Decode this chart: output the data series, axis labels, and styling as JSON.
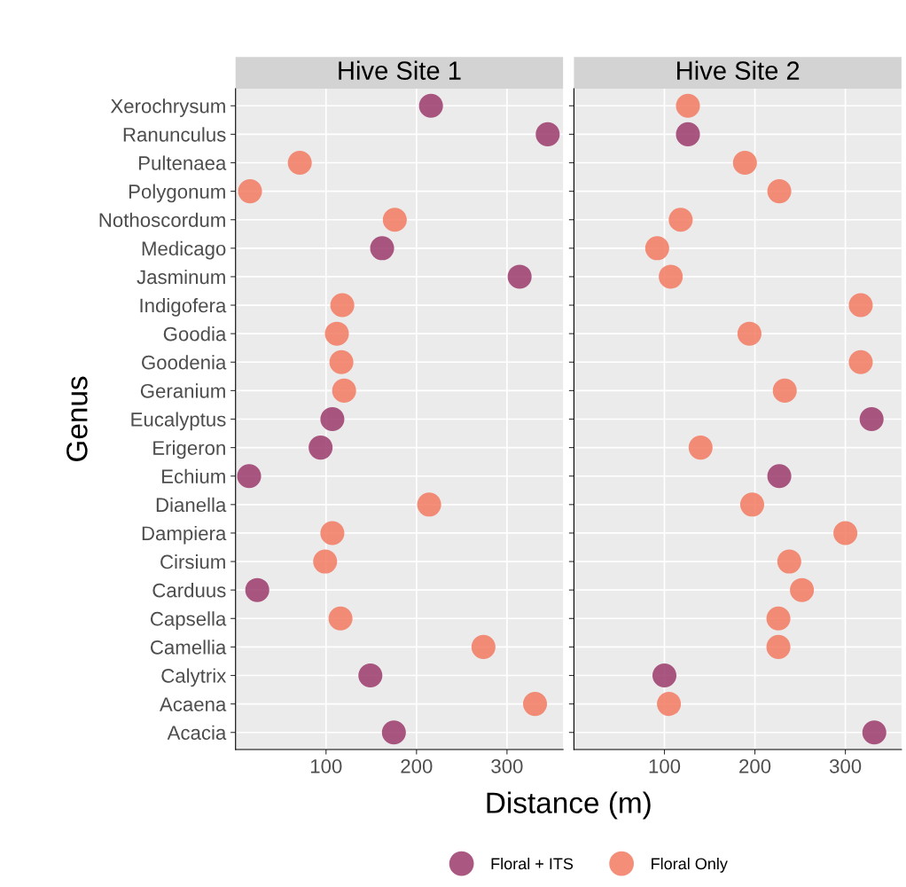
{
  "chart_data": [
    {
      "type": "scatter",
      "title": "Hive Site 1",
      "ylabel": "Genus",
      "xlabel": "Distance (m)",
      "orientation": "horizontal",
      "xlim": [
        0,
        362
      ],
      "xticks": [
        100,
        200,
        300
      ],
      "grid": true,
      "legend": "bottom",
      "marker": "circle",
      "categories": [
        "Xerochrysum",
        "Ranunculus",
        "Pultenaea",
        "Polygonum",
        "Nothoscordum",
        "Medicago",
        "Jasminum",
        "Indigofera",
        "Goodia",
        "Goodenia",
        "Geranium",
        "Eucalyptus",
        "Erigeron",
        "Echium",
        "Dianella",
        "Dampiera",
        "Cirsium",
        "Carduus",
        "Capsella",
        "Camellia",
        "Calytrix",
        "Acaena",
        "Acacia"
      ],
      "series": [
        {
          "name": "Floral + ITS",
          "color": "#9b3a6b",
          "values": [
            216,
            345,
            null,
            null,
            null,
            162,
            314,
            null,
            null,
            null,
            null,
            107,
            94,
            15,
            null,
            null,
            null,
            24,
            null,
            null,
            149,
            null,
            175
          ]
        },
        {
          "name": "Floral Only",
          "color": "#f27a62",
          "values": [
            null,
            null,
            71,
            16,
            176,
            null,
            null,
            118,
            112,
            117,
            120,
            null,
            null,
            null,
            214,
            107,
            99,
            null,
            116,
            274,
            null,
            331,
            null
          ]
        }
      ]
    },
    {
      "type": "scatter",
      "title": "Hive Site 2",
      "orientation": "horizontal",
      "xlim": [
        0,
        362
      ],
      "xticks": [
        100,
        200,
        300
      ],
      "grid": true,
      "tick_labels": "x",
      "marker": "circle",
      "series": [
        {
          "name": "Floral + ITS",
          "color": "#9b3a6b",
          "values": [
            null,
            126,
            null,
            null,
            null,
            null,
            null,
            null,
            null,
            null,
            null,
            329,
            null,
            227,
            null,
            null,
            null,
            null,
            null,
            null,
            100,
            null,
            332
          ]
        },
        {
          "name": "Floral Only",
          "color": "#f27a62",
          "values": [
            126,
            null,
            189,
            227,
            118,
            92,
            107,
            317,
            194,
            317,
            233,
            null,
            140,
            null,
            197,
            300,
            238,
            252,
            226,
            226,
            null,
            105,
            null
          ]
        }
      ]
    }
  ]
}
